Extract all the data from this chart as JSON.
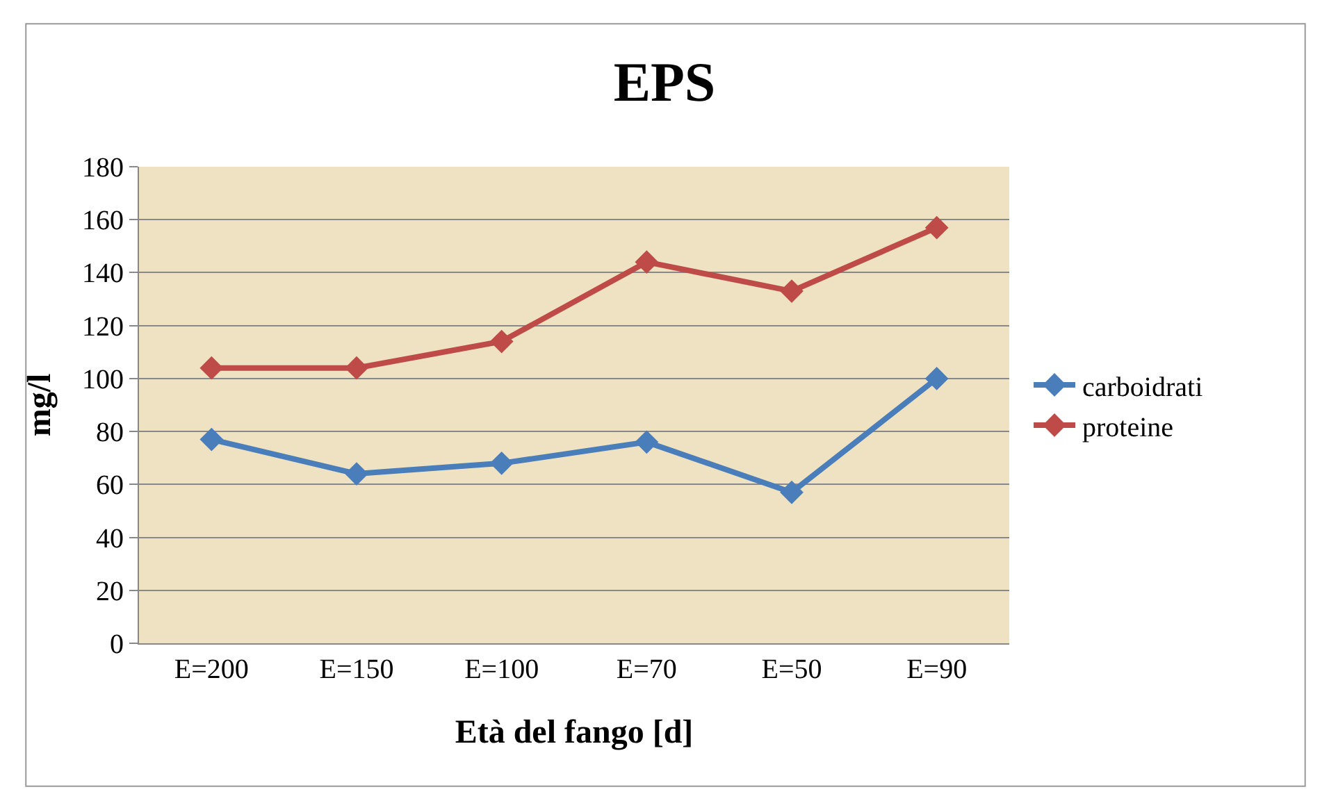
{
  "chart_data": {
    "type": "line",
    "title": "EPS",
    "xlabel": "Età del fango [d]",
    "ylabel": "mg/l",
    "categories": [
      "E=200",
      "E=150",
      "E=100",
      "E=70",
      "E=50",
      "E=90"
    ],
    "series": [
      {
        "name": "carboidrati",
        "color": "#4a7ebb",
        "values": [
          77,
          64,
          68,
          76,
          57,
          100
        ]
      },
      {
        "name": "proteine",
        "color": "#be4b48",
        "values": [
          104,
          104,
          114,
          144,
          133,
          157
        ]
      }
    ],
    "ylim": [
      0,
      180
    ],
    "yticks": [
      0,
      20,
      40,
      60,
      80,
      100,
      120,
      140,
      160,
      180
    ],
    "grid": "y",
    "legend": "right",
    "marker": "diamond",
    "line_style": "solid"
  }
}
